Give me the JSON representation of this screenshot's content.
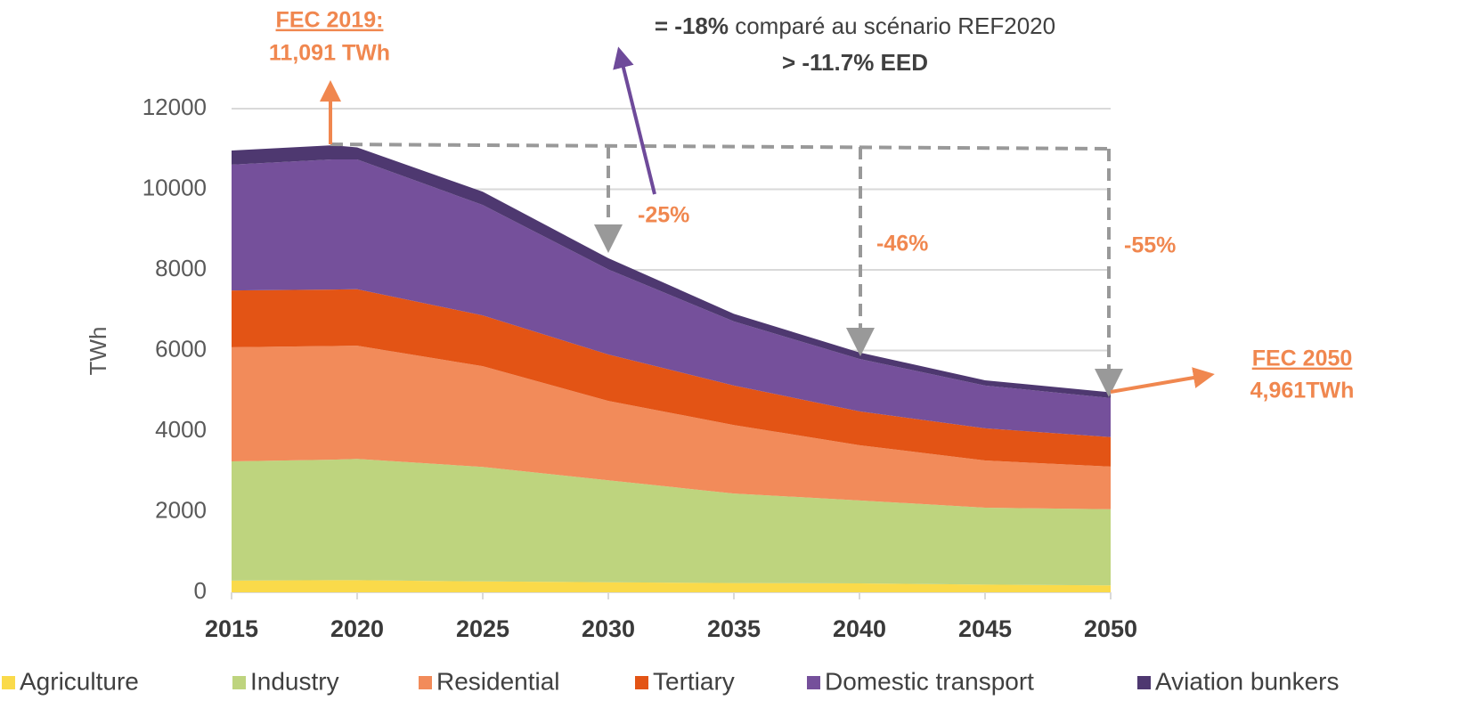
{
  "chart_data": {
    "type": "stacked_area",
    "y_label": "TWh",
    "x": [
      2015,
      2019,
      2020,
      2025,
      2030,
      2035,
      2040,
      2045,
      2050
    ],
    "xlim": [
      2015,
      2050
    ],
    "xticks": [
      2015,
      2020,
      2025,
      2030,
      2035,
      2040,
      2045,
      2050
    ],
    "ylim": [
      0,
      12000
    ],
    "yticks": [
      0,
      2000,
      4000,
      6000,
      8000,
      10000,
      12000
    ],
    "grid": true,
    "series": [
      {
        "name": "Agriculture",
        "color": "#fada4a",
        "values": [
          290,
          300,
          300,
          270,
          250,
          230,
          220,
          190,
          170
        ]
      },
      {
        "name": "Industry",
        "color": "#bed47e",
        "values": [
          2960,
          2990,
          3010,
          2840,
          2530,
          2220,
          2060,
          1910,
          1890
        ]
      },
      {
        "name": "Residential",
        "color": "#f28b5a",
        "values": [
          2830,
          2820,
          2810,
          2500,
          1970,
          1700,
          1370,
          1170,
          1060
        ]
      },
      {
        "name": "Tertiary",
        "color": "#e35415",
        "values": [
          1410,
          1400,
          1400,
          1260,
          1150,
          980,
          840,
          800,
          730
        ]
      },
      {
        "name": "Domestic transport",
        "color": "#75509b",
        "values": [
          3120,
          3230,
          3220,
          2740,
          2110,
          1590,
          1300,
          1060,
          970
        ]
      },
      {
        "name": "Aviation bunkers",
        "color": "#4e3870",
        "values": [
          350,
          351,
          300,
          330,
          280,
          190,
          160,
          130,
          141
        ]
      }
    ],
    "annotations": [
      {
        "text": "FEC 2019:"
      },
      {
        "text": "11,091 TWh"
      },
      {
        "text": "= -18%"
      },
      {
        "text": " comparé au scénario REF2020"
      },
      {
        "text": "> -11.7% EED"
      },
      {
        "text": "-25%"
      },
      {
        "text": "-46%"
      },
      {
        "text": "-55%"
      },
      {
        "text": "FEC 2050"
      },
      {
        "text": "4,961TWh"
      }
    ]
  }
}
